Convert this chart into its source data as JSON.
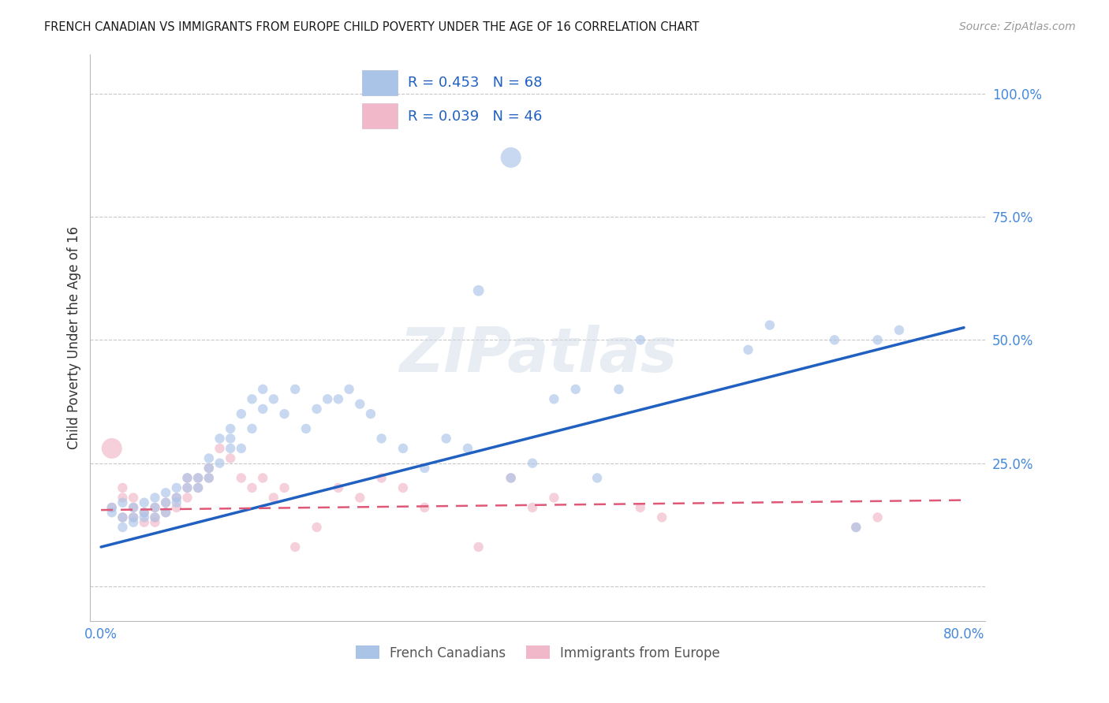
{
  "title": "FRENCH CANADIAN VS IMMIGRANTS FROM EUROPE CHILD POVERTY UNDER THE AGE OF 16 CORRELATION CHART",
  "source": "Source: ZipAtlas.com",
  "ylabel": "Child Poverty Under the Age of 16",
  "xlim": [
    -0.01,
    0.82
  ],
  "ylim": [
    -0.07,
    1.08
  ],
  "ytick_positions": [
    0.0,
    0.25,
    0.5,
    0.75,
    1.0
  ],
  "ytick_labels": [
    "",
    "25.0%",
    "50.0%",
    "75.0%",
    "100.0%"
  ],
  "xtick_positions": [
    0.0,
    0.2,
    0.4,
    0.6,
    0.8
  ],
  "xtick_labels": [
    "0.0%",
    "",
    "",
    "",
    "80.0%"
  ],
  "grid_color": "#c8c8c8",
  "background_color": "#ffffff",
  "blue_color": "#aac4e8",
  "pink_color": "#f0b8c8",
  "blue_line_color": "#2060c0",
  "pink_line_color": "#e05878",
  "watermark": "ZIPatlas",
  "legend_R1": "R = 0.453",
  "legend_N1": "N = 68",
  "legend_R2": "R = 0.039",
  "legend_N2": "N = 46",
  "blue_trend_x0": 0.0,
  "blue_trend_x1": 0.8,
  "blue_trend_y0": 0.08,
  "blue_trend_y1": 0.525,
  "pink_trend_x0": 0.0,
  "pink_trend_x1": 0.8,
  "pink_trend_y0": 0.155,
  "pink_trend_y1": 0.175,
  "blue_scatter_x": [
    0.38,
    0.35,
    0.01,
    0.01,
    0.02,
    0.02,
    0.02,
    0.03,
    0.03,
    0.03,
    0.04,
    0.04,
    0.04,
    0.05,
    0.05,
    0.05,
    0.06,
    0.06,
    0.06,
    0.07,
    0.07,
    0.07,
    0.08,
    0.08,
    0.09,
    0.09,
    0.1,
    0.1,
    0.1,
    0.11,
    0.11,
    0.12,
    0.12,
    0.12,
    0.13,
    0.13,
    0.14,
    0.14,
    0.15,
    0.15,
    0.16,
    0.17,
    0.18,
    0.19,
    0.2,
    0.21,
    0.22,
    0.23,
    0.24,
    0.25,
    0.26,
    0.28,
    0.3,
    0.32,
    0.38,
    0.42,
    0.44,
    0.46,
    0.5,
    0.6,
    0.62,
    0.68,
    0.7,
    0.72,
    0.74,
    0.48,
    0.4,
    0.34
  ],
  "blue_scatter_y": [
    0.87,
    0.6,
    0.15,
    0.16,
    0.14,
    0.17,
    0.12,
    0.14,
    0.16,
    0.13,
    0.15,
    0.17,
    0.14,
    0.16,
    0.18,
    0.14,
    0.17,
    0.19,
    0.15,
    0.17,
    0.2,
    0.18,
    0.2,
    0.22,
    0.22,
    0.2,
    0.24,
    0.22,
    0.26,
    0.25,
    0.3,
    0.28,
    0.32,
    0.3,
    0.35,
    0.28,
    0.38,
    0.32,
    0.4,
    0.36,
    0.38,
    0.35,
    0.4,
    0.32,
    0.36,
    0.38,
    0.38,
    0.4,
    0.37,
    0.35,
    0.3,
    0.28,
    0.24,
    0.3,
    0.22,
    0.38,
    0.4,
    0.22,
    0.5,
    0.48,
    0.53,
    0.5,
    0.12,
    0.5,
    0.52,
    0.4,
    0.25,
    0.28
  ],
  "blue_scatter_size": [
    350,
    100,
    80,
    80,
    80,
    80,
    80,
    80,
    80,
    80,
    80,
    80,
    80,
    80,
    80,
    80,
    80,
    80,
    80,
    80,
    80,
    80,
    80,
    80,
    80,
    80,
    80,
    80,
    80,
    80,
    80,
    80,
    80,
    80,
    80,
    80,
    80,
    80,
    80,
    80,
    80,
    80,
    80,
    80,
    80,
    80,
    80,
    80,
    80,
    80,
    80,
    80,
    80,
    80,
    80,
    80,
    80,
    80,
    80,
    80,
    80,
    80,
    80,
    80,
    80,
    80,
    80,
    80
  ],
  "pink_scatter_x": [
    0.01,
    0.01,
    0.02,
    0.02,
    0.02,
    0.03,
    0.03,
    0.03,
    0.04,
    0.04,
    0.05,
    0.05,
    0.05,
    0.06,
    0.06,
    0.07,
    0.07,
    0.08,
    0.08,
    0.08,
    0.09,
    0.09,
    0.1,
    0.1,
    0.11,
    0.12,
    0.13,
    0.14,
    0.15,
    0.16,
    0.17,
    0.18,
    0.2,
    0.22,
    0.24,
    0.26,
    0.28,
    0.3,
    0.35,
    0.38,
    0.4,
    0.42,
    0.5,
    0.52,
    0.7,
    0.72
  ],
  "pink_scatter_y": [
    0.28,
    0.16,
    0.2,
    0.14,
    0.18,
    0.14,
    0.16,
    0.18,
    0.13,
    0.15,
    0.14,
    0.16,
    0.13,
    0.15,
    0.17,
    0.18,
    0.16,
    0.2,
    0.18,
    0.22,
    0.22,
    0.2,
    0.24,
    0.22,
    0.28,
    0.26,
    0.22,
    0.2,
    0.22,
    0.18,
    0.2,
    0.08,
    0.12,
    0.2,
    0.18,
    0.22,
    0.2,
    0.16,
    0.08,
    0.22,
    0.16,
    0.18,
    0.16,
    0.14,
    0.12,
    0.14
  ],
  "pink_scatter_size": [
    350,
    80,
    80,
    80,
    80,
    80,
    80,
    80,
    80,
    80,
    80,
    80,
    80,
    80,
    80,
    80,
    80,
    80,
    80,
    80,
    80,
    80,
    80,
    80,
    80,
    80,
    80,
    80,
    80,
    80,
    80,
    80,
    80,
    80,
    80,
    80,
    80,
    80,
    80,
    80,
    80,
    80,
    80,
    80,
    80,
    80
  ],
  "legend_label1": "French Canadians",
  "legend_label2": "Immigrants from Europe",
  "tick_color": "#4488dd",
  "axis_color": "#4488dd",
  "label_color": "#333333"
}
